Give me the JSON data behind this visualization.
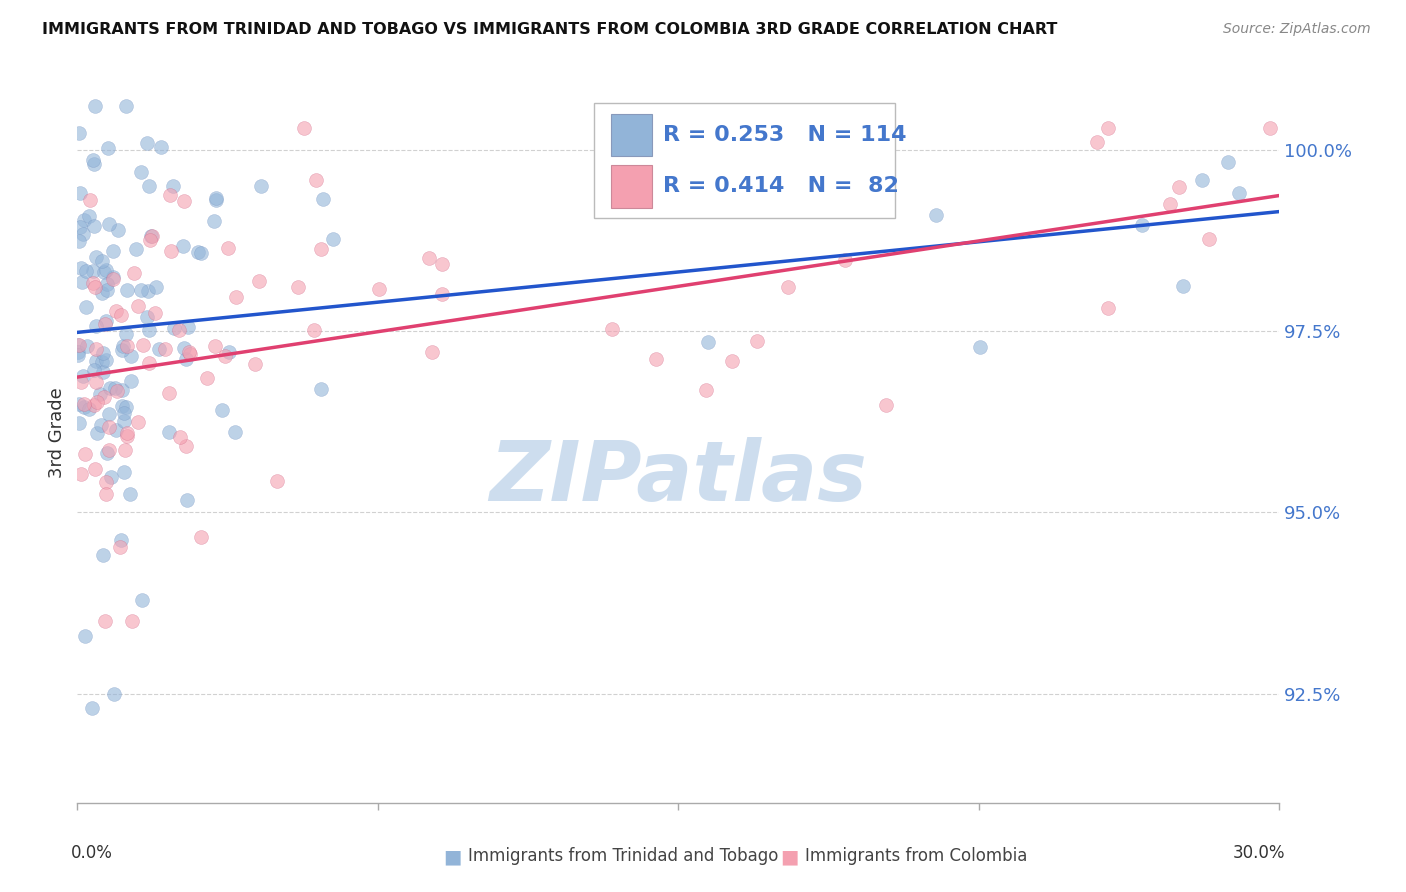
{
  "title": "IMMIGRANTS FROM TRINIDAD AND TOBAGO VS IMMIGRANTS FROM COLOMBIA 3RD GRADE CORRELATION CHART",
  "source": "Source: ZipAtlas.com",
  "ylabel": "3rd Grade",
  "xlim": [
    0.0,
    30.0
  ],
  "ylim": [
    91.0,
    101.2
  ],
  "yticks": [
    92.5,
    95.0,
    97.5,
    100.0
  ],
  "blue_color": "#92B4D8",
  "blue_edge_color": "#7090C0",
  "pink_color": "#F4A0B0",
  "pink_edge_color": "#D06080",
  "blue_line_color": "#2255CC",
  "pink_line_color": "#E04070",
  "legend_blue_r": 0.253,
  "legend_blue_n": 114,
  "legend_pink_r": 0.414,
  "legend_pink_n": 82,
  "ytick_color": "#4477CC",
  "watermark_color": "#C5D8EC",
  "grid_color": "#CCCCCC",
  "title_fontsize": 11.5,
  "source_fontsize": 10,
  "legend_fontsize": 16,
  "scatter_size": 100,
  "scatter_alpha": 0.6,
  "seed": 12
}
